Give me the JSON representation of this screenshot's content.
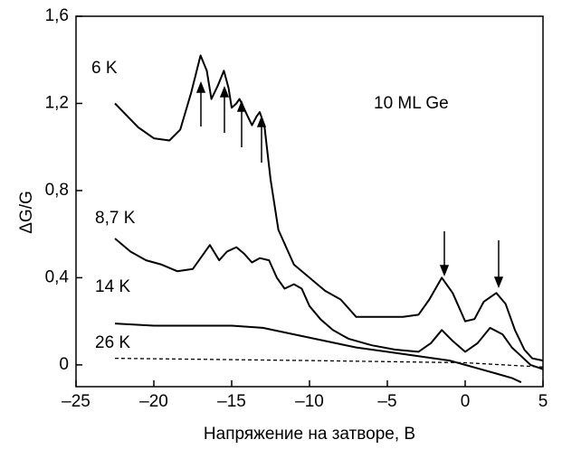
{
  "chart_data": {
    "type": "line",
    "x_label": "Напряжение на затворе, В",
    "y_label": "ΔG/G",
    "annotation": "10 ML Ge",
    "xlim": [
      -25,
      5
    ],
    "xticks": [
      {
        "value": -25,
        "label": "–25"
      },
      {
        "value": -20,
        "label": "–20"
      },
      {
        "value": -15,
        "label": "–15"
      },
      {
        "value": -10,
        "label": "–10"
      },
      {
        "value": -5,
        "label": "–5"
      },
      0,
      5
    ],
    "ylim": [
      -0.1,
      1.6
    ],
    "yticks": [
      0,
      {
        "value": 0.4,
        "label": "0,4"
      },
      {
        "value": 0.8,
        "label": "0,8"
      },
      {
        "value": 1.2,
        "label": "1,2"
      },
      {
        "value": 1.6,
        "label": "1,6"
      }
    ],
    "series": [
      {
        "name": "6 K",
        "color": "#000000",
        "linestyle": "solid",
        "x": [
          -22.5,
          -21,
          -20,
          -19,
          -18.3,
          -17.6,
          -17,
          -16.6,
          -16.3,
          -15.9,
          -15.5,
          -15.2,
          -15,
          -14.7,
          -14.5,
          -14.1,
          -13.7,
          -13.4,
          -13.2,
          -12.9,
          -12.5,
          -12,
          -11,
          -10,
          -9,
          -8,
          -7,
          -6,
          -5,
          -4,
          -3,
          -2.3,
          -1.5,
          -0.8,
          0,
          0.6,
          1.2,
          2,
          2.6,
          3.2,
          3.8,
          4.3,
          5
        ],
        "values": [
          1.2,
          1.09,
          1.04,
          1.03,
          1.08,
          1.25,
          1.42,
          1.35,
          1.22,
          1.28,
          1.35,
          1.27,
          1.18,
          1.2,
          1.22,
          1.16,
          1.1,
          1.14,
          1.16,
          1.1,
          0.85,
          0.62,
          0.46,
          0.4,
          0.34,
          0.3,
          0.22,
          0.22,
          0.22,
          0.22,
          0.23,
          0.3,
          0.4,
          0.33,
          0.2,
          0.21,
          0.29,
          0.33,
          0.28,
          0.16,
          0.07,
          0.03,
          0.02
        ]
      },
      {
        "name": "8,7 K",
        "color": "#000000",
        "linestyle": "solid",
        "x": [
          -22.5,
          -21.5,
          -20.5,
          -19.5,
          -18.5,
          -17.5,
          -16.9,
          -16.4,
          -15.8,
          -15.3,
          -14.7,
          -14.2,
          -13.7,
          -13.2,
          -12.6,
          -12.1,
          -11.6,
          -11,
          -10.5,
          -10,
          -9.3,
          -8.5,
          -7.5,
          -6,
          -4.5,
          -3,
          -2.2,
          -1.5,
          -0.8,
          0,
          0.8,
          1.6,
          2.4,
          3,
          3.6,
          4.2,
          5
        ],
        "values": [
          0.58,
          0.52,
          0.48,
          0.46,
          0.43,
          0.44,
          0.5,
          0.55,
          0.48,
          0.52,
          0.54,
          0.51,
          0.47,
          0.49,
          0.48,
          0.4,
          0.35,
          0.37,
          0.35,
          0.27,
          0.21,
          0.16,
          0.12,
          0.09,
          0.07,
          0.06,
          0.1,
          0.16,
          0.11,
          0.06,
          0.1,
          0.17,
          0.14,
          0.08,
          0.04,
          0.0,
          -0.02
        ]
      },
      {
        "name": "14 K",
        "color": "#000000",
        "linestyle": "solid",
        "x": [
          -22.5,
          -20,
          -18,
          -15,
          -13,
          -11,
          -9,
          -7,
          -5,
          -3,
          -1,
          0,
          1,
          2,
          3,
          3.6
        ],
        "values": [
          0.19,
          0.18,
          0.18,
          0.18,
          0.17,
          0.14,
          0.11,
          0.08,
          0.06,
          0.04,
          0.02,
          0.0,
          -0.02,
          -0.04,
          -0.06,
          -0.08
        ]
      },
      {
        "name": "26 K",
        "color": "#000000",
        "linestyle": "dashed",
        "x": [
          -22.5,
          -10,
          0,
          5
        ],
        "values": [
          0.03,
          0.02,
          0.01,
          -0.01
        ]
      }
    ]
  }
}
